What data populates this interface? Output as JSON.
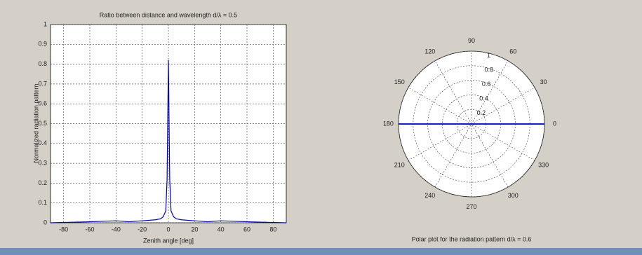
{
  "chart_data": [
    {
      "type": "line",
      "title": "Ratio between distance and wavelength d/λ = 0.5",
      "x_label": "Zenith angle [deg]",
      "y_label": "Normalized radiation pattern",
      "x": [
        -90,
        -60,
        -40,
        -30,
        -20,
        -10,
        -6,
        -4,
        -2,
        -1,
        0,
        1,
        2,
        4,
        6,
        10,
        20,
        30,
        40,
        60,
        90
      ],
      "values": [
        0,
        0.005,
        0.01,
        0.005,
        0.01,
        0.015,
        0.02,
        0.03,
        0.06,
        0.22,
        0.82,
        0.22,
        0.06,
        0.03,
        0.02,
        0.015,
        0.01,
        0.005,
        0.01,
        0.005,
        0
      ],
      "color": "#0000aa",
      "xlim": [
        -90,
        90
      ],
      "xticks": [
        -80,
        -60,
        -40,
        -20,
        0,
        20,
        40,
        60,
        80
      ],
      "ylim": [
        0,
        1
      ],
      "yticks": [
        0,
        0.1,
        0.2,
        0.3,
        0.4,
        0.5,
        0.6,
        0.7,
        0.8,
        0.9,
        1
      ],
      "grid": true
    },
    {
      "type": "polar",
      "x_label": "Polar plot for the radiation pattern d/λ = 0.6",
      "theta": [
        0,
        180
      ],
      "values": [
        1,
        1
      ],
      "color": "#1a1acc",
      "rlim": [
        0,
        1
      ],
      "rticks": [
        0.2,
        0.4,
        0.6,
        0.8,
        1
      ],
      "thetaticks": [
        0,
        30,
        60,
        90,
        120,
        150,
        180,
        210,
        240,
        270,
        300,
        330
      ],
      "grid": true
    }
  ]
}
